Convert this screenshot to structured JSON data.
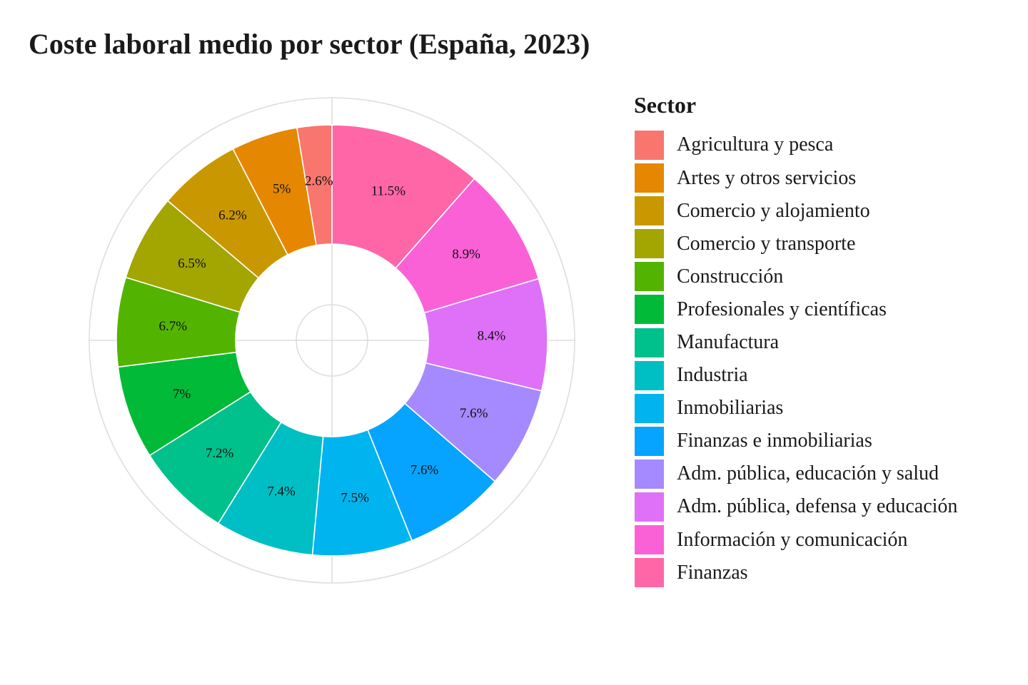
{
  "chart_data": {
    "type": "pie",
    "title": "Coste laboral medio por sector (España, 2023)",
    "legend_title": "Sector",
    "legend_position": "right",
    "donut": true,
    "label_format": "percent",
    "slices": [
      {
        "label": "Agricultura y pesca",
        "value": 2.6,
        "text": "2.6%",
        "color": "#F8766D"
      },
      {
        "label": "Artes y otros servicios",
        "value": 5.0,
        "text": "5%",
        "color": "#E58700"
      },
      {
        "label": "Comercio y alojamiento",
        "value": 6.2,
        "text": "6.2%",
        "color": "#C99800"
      },
      {
        "label": "Comercio y transporte",
        "value": 6.5,
        "text": "6.5%",
        "color": "#A3A500"
      },
      {
        "label": "Construcción",
        "value": 6.7,
        "text": "6.7%",
        "color": "#53B400"
      },
      {
        "label": "Profesionales y científicas",
        "value": 7.0,
        "text": "7%",
        "color": "#00BA38"
      },
      {
        "label": "Manufactura",
        "value": 7.2,
        "text": "7.2%",
        "color": "#00C08B"
      },
      {
        "label": "Industria",
        "value": 7.4,
        "text": "7.4%",
        "color": "#00BFC4"
      },
      {
        "label": "Inmobiliarias",
        "value": 7.5,
        "text": "7.5%",
        "color": "#00B4EF"
      },
      {
        "label": "Finanzas e inmobiliarias",
        "value": 7.6,
        "text": "7.6%",
        "color": "#06A4FF"
      },
      {
        "label": "Adm. pública, educación y salud",
        "value": 7.6,
        "text": "7.6%",
        "color": "#A58AFF"
      },
      {
        "label": "Adm. pública, defensa y educación",
        "value": 8.4,
        "text": "8.4%",
        "color": "#DF70F8"
      },
      {
        "label": "Información y comunicación",
        "value": 8.9,
        "text": "8.9%",
        "color": "#FB61D7"
      },
      {
        "label": "Finanzas",
        "value": 11.5,
        "text": "11.5%",
        "color": "#FF66A8"
      }
    ]
  }
}
